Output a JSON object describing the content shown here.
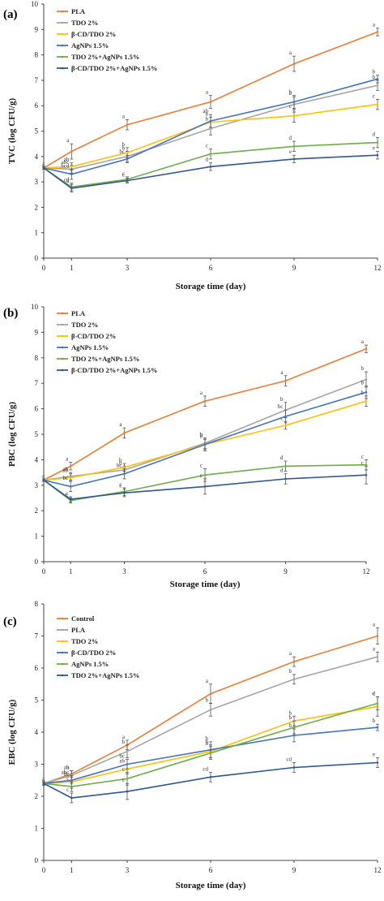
{
  "chart_data": [
    {
      "type": "line",
      "panel_label": "(a)",
      "xlabel": "Storage time (day)",
      "ylabel": "TVC (log CFU/g)",
      "x": [
        0,
        1,
        3,
        6,
        9,
        12
      ],
      "xticks": [
        "0",
        "1",
        "3",
        "6",
        "9",
        "12"
      ],
      "ylim": [
        0,
        10
      ],
      "yticks": [
        "0",
        "1",
        "2",
        "3",
        "4",
        "5",
        "6",
        "7",
        "8",
        "9",
        "10"
      ],
      "legend_position": "top-left",
      "series": [
        {
          "name": "PLA",
          "color": "#ED7D31",
          "values": [
            3.55,
            4.2,
            5.25,
            6.15,
            7.65,
            8.9
          ],
          "errors": [
            0.05,
            0.3,
            0.2,
            0.25,
            0.3,
            0.15
          ],
          "labels": [
            "a",
            "a",
            "a",
            "a",
            "a",
            "a"
          ]
        },
        {
          "name": "TDO 2%",
          "color": "#A5A5A5",
          "values": [
            3.55,
            3.5,
            4.0,
            5.1,
            6.05,
            6.8
          ],
          "errors": [
            0.05,
            0.15,
            0.2,
            0.25,
            0.3,
            0.2
          ],
          "labels": [
            "",
            "abc",
            "b",
            "b",
            "b",
            "b"
          ]
        },
        {
          "name": "β-CD/TDO 2%",
          "color": "#FFC000",
          "values": [
            3.55,
            3.6,
            4.15,
            5.35,
            5.6,
            6.05
          ],
          "errors": [
            0.05,
            0.15,
            0.2,
            0.2,
            0.25,
            0.2
          ],
          "labels": [
            "",
            "ab",
            "b",
            "b",
            "c",
            "c"
          ]
        },
        {
          "name": "AgNPs 1.5%",
          "color": "#4472C4",
          "values": [
            3.55,
            3.3,
            3.9,
            5.4,
            6.15,
            7.05
          ],
          "errors": [
            0.05,
            0.2,
            0.15,
            0.25,
            0.25,
            0.15
          ],
          "labels": [
            "",
            "bcd",
            "bc",
            "ab",
            "b",
            "b"
          ]
        },
        {
          "name": "TDO 2%+AgNPs 1.5%",
          "color": "#70AD47",
          "values": [
            3.55,
            2.8,
            3.1,
            4.1,
            4.4,
            4.55
          ],
          "errors": [
            0.05,
            0.15,
            0.1,
            0.2,
            0.2,
            0.2
          ],
          "labels": [
            "",
            "cd",
            "c",
            "c",
            "d",
            "d"
          ]
        },
        {
          "name": "β-CD/TDO 2%+AgNPs 1.5%",
          "color": "#2F5597",
          "values": [
            3.55,
            2.75,
            3.05,
            3.6,
            3.9,
            4.05
          ],
          "errors": [
            0.05,
            0.15,
            0.1,
            0.15,
            0.15,
            0.15
          ],
          "labels": [
            "",
            "d",
            "c",
            "d",
            "e",
            "e"
          ]
        }
      ]
    },
    {
      "type": "line",
      "panel_label": "(b)",
      "xlabel": "Storage time (day)",
      "ylabel": "PBC (log CFU/g)",
      "x": [
        0,
        1,
        3,
        6,
        9,
        12
      ],
      "xticks": [
        "0",
        "1",
        "3",
        "6",
        "9",
        "12"
      ],
      "ylim": [
        0,
        10
      ],
      "yticks": [
        "0",
        "1",
        "2",
        "3",
        "4",
        "5",
        "6",
        "7",
        "8",
        "9",
        "10"
      ],
      "legend_position": "top-left",
      "series": [
        {
          "name": "PLA",
          "color": "#ED7D31",
          "values": [
            3.2,
            3.75,
            5.05,
            6.3,
            7.1,
            8.35
          ],
          "errors": [
            0.05,
            0.15,
            0.2,
            0.2,
            0.2,
            0.15
          ],
          "labels": [
            "a",
            "a",
            "a",
            "a",
            "a",
            "a"
          ]
        },
        {
          "name": "TDO 2%",
          "color": "#A5A5A5",
          "values": [
            3.2,
            3.35,
            3.6,
            4.65,
            5.95,
            7.15
          ],
          "errors": [
            0.05,
            0.15,
            0.15,
            0.2,
            0.3,
            0.3
          ],
          "labels": [
            "",
            "ab",
            "b",
            "b",
            "b",
            "b"
          ]
        },
        {
          "name": "β-CD/TDO 2%",
          "color": "#FFC000",
          "values": [
            3.2,
            3.3,
            3.7,
            4.6,
            5.35,
            6.3
          ],
          "errors": [
            0.05,
            0.15,
            0.15,
            0.2,
            0.15,
            0.2
          ],
          "labels": [
            "",
            "ab",
            "b",
            "b",
            "c",
            "b"
          ]
        },
        {
          "name": "AgNPs 1.5%",
          "color": "#4472C4",
          "values": [
            3.2,
            2.95,
            3.45,
            4.6,
            5.7,
            6.65
          ],
          "errors": [
            0.05,
            0.2,
            0.2,
            0.25,
            0.25,
            0.25
          ],
          "labels": [
            "",
            "bc",
            "bc",
            "b",
            "bc",
            "b"
          ]
        },
        {
          "name": "TDO 2%+AgNPs 1.5%",
          "color": "#70AD47",
          "values": [
            3.2,
            2.4,
            2.75,
            3.4,
            3.75,
            3.8
          ],
          "errors": [
            0.05,
            0.1,
            0.15,
            0.25,
            0.2,
            0.2
          ],
          "labels": [
            "",
            "c",
            "c",
            "c",
            "d",
            "c"
          ]
        },
        {
          "name": "β-CD/TDO 2%+AgNPs 1.5%",
          "color": "#2F5597",
          "values": [
            3.2,
            2.45,
            2.7,
            2.95,
            3.25,
            3.4
          ],
          "errors": [
            0.05,
            0.1,
            0.15,
            0.3,
            0.2,
            0.35
          ],
          "labels": [
            "",
            "c",
            "c",
            "c",
            "d",
            "c"
          ]
        }
      ]
    },
    {
      "type": "line",
      "panel_label": "(c)",
      "xlabel": "Storage time (day)",
      "ylabel": "EBC (log CFU/g)",
      "x": [
        0,
        1,
        3,
        6,
        9,
        12
      ],
      "xticks": [
        "0",
        "1",
        "3",
        "6",
        "9",
        "12"
      ],
      "ylim": [
        0,
        8
      ],
      "yticks": [
        "0",
        "1",
        "2",
        "3",
        "4",
        "5",
        "6",
        "7",
        "8"
      ],
      "legend_position": "top-left",
      "series": [
        {
          "name": "Control",
          "color": "#ED7D31",
          "values": [
            2.4,
            2.7,
            3.6,
            5.2,
            6.2,
            7.0
          ],
          "errors": [
            0.05,
            0.1,
            0.15,
            0.3,
            0.15,
            0.25
          ],
          "labels": [
            "a",
            "a",
            "a",
            "a",
            "a",
            "a"
          ]
        },
        {
          "name": "PLA",
          "color": "#A5A5A5",
          "values": [
            2.4,
            2.65,
            3.4,
            4.7,
            5.65,
            6.35
          ],
          "errors": [
            0.05,
            0.15,
            0.2,
            0.2,
            0.15,
            0.15
          ],
          "labels": [
            "",
            "ab",
            "b",
            "b",
            "b",
            "a"
          ]
        },
        {
          "name": "TDO 2%",
          "color": "#FFC000",
          "values": [
            2.4,
            2.45,
            2.85,
            3.4,
            4.35,
            4.8
          ],
          "errors": [
            0.05,
            0.2,
            0.15,
            0.2,
            0.15,
            0.3
          ],
          "labels": [
            "",
            "abc",
            "ab",
            "b",
            "b",
            "c"
          ]
        },
        {
          "name": "β-CD/TDO 2%",
          "color": "#4472C4",
          "values": [
            2.4,
            2.5,
            3.0,
            3.45,
            3.9,
            4.15
          ],
          "errors": [
            0.05,
            0.1,
            0.15,
            0.25,
            0.2,
            0.1
          ],
          "labels": [
            "",
            "bc",
            "bc",
            "b",
            "b",
            "b"
          ]
        },
        {
          "name": "AgNPs 1.5%",
          "color": "#70AD47",
          "values": [
            2.4,
            2.3,
            2.55,
            3.35,
            4.15,
            4.9
          ],
          "errors": [
            0.05,
            0.15,
            0.2,
            0.2,
            0.2,
            0.2
          ],
          "labels": [
            "",
            "c",
            "c",
            "b",
            "b",
            "d"
          ]
        },
        {
          "name": "TDO 2%+AgNPs 1.5%",
          "color": "#2F5597",
          "values": [
            2.4,
            1.95,
            2.15,
            2.6,
            2.9,
            3.05
          ],
          "errors": [
            0.05,
            0.15,
            0.25,
            0.15,
            0.15,
            0.15
          ],
          "labels": [
            "",
            "c",
            "c",
            "cd",
            "cd",
            "e"
          ]
        }
      ]
    }
  ]
}
